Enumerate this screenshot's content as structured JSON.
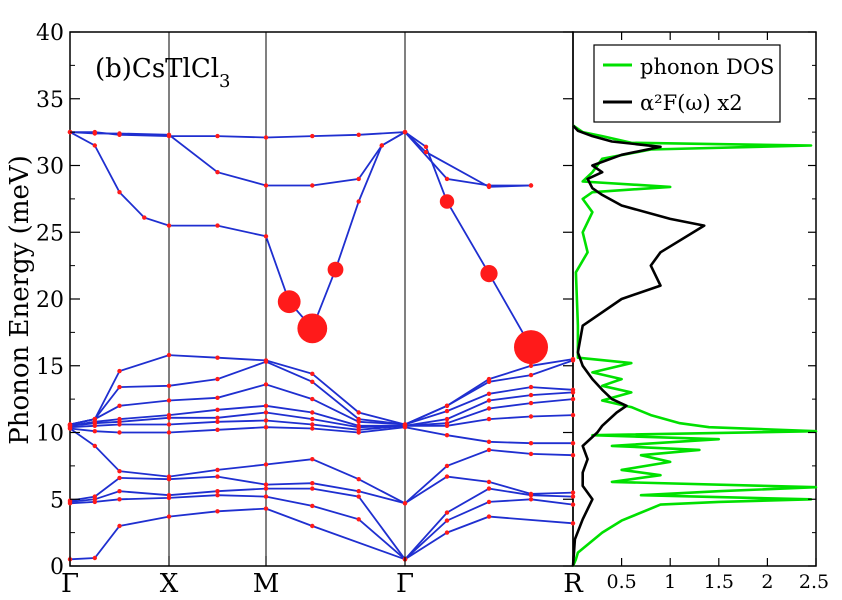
{
  "chart_data": [
    {
      "type": "line",
      "title": "(b)CsTlCl",
      "title_subscript": "3",
      "ylabel": "Phonon Energy (meV)",
      "xlabel": "",
      "ylim": [
        0,
        40
      ],
      "y_ticks": [
        "0",
        "5",
        "10",
        "15",
        "20",
        "25",
        "30",
        "35",
        "40"
      ],
      "x_ticks": [
        "Γ",
        "X",
        "M",
        "Γ",
        "R"
      ],
      "grid": false,
      "vertical_lines_at": [
        "X",
        "M",
        "Γ"
      ],
      "band_color": "#1f2fd0",
      "marker_color": "#ff1a1a",
      "note": "",
      "bands": [
        [
          [
            0,
            0.5
          ],
          [
            0.5,
            0.6
          ],
          [
            1,
            3.0
          ],
          [
            2,
            3.7
          ],
          [
            2.5,
            4.1
          ],
          [
            3,
            4.3
          ],
          [
            4,
            3.0
          ],
          [
            6,
            0.5
          ],
          [
            7,
            2.5
          ],
          [
            8,
            3.7
          ],
          [
            10,
            3.2
          ]
        ],
        [
          [
            0,
            4.7
          ],
          [
            0.5,
            4.8
          ],
          [
            1,
            5.0
          ],
          [
            2,
            5.1
          ],
          [
            2.5,
            5.3
          ],
          [
            3,
            5.2
          ],
          [
            4,
            4.5
          ],
          [
            5,
            3.5
          ],
          [
            6,
            0.5
          ],
          [
            7,
            3.4
          ],
          [
            8,
            4.8
          ],
          [
            9,
            5.0
          ],
          [
            10,
            4.6
          ]
        ],
        [
          [
            0,
            4.8
          ],
          [
            0.5,
            5.0
          ],
          [
            1,
            5.6
          ],
          [
            2,
            5.3
          ],
          [
            2.5,
            5.6
          ],
          [
            3,
            5.8
          ],
          [
            4,
            5.8
          ],
          [
            5,
            5.2
          ],
          [
            6,
            0.5
          ],
          [
            7,
            4.0
          ],
          [
            8,
            5.8
          ],
          [
            9,
            5.3
          ],
          [
            10,
            5.2
          ]
        ],
        [
          [
            0,
            4.9
          ],
          [
            0.5,
            5.2
          ],
          [
            1,
            6.6
          ],
          [
            2,
            6.5
          ],
          [
            2.5,
            6.7
          ],
          [
            3,
            6.1
          ],
          [
            4,
            6.2
          ],
          [
            5,
            5.6
          ],
          [
            6,
            4.7
          ],
          [
            7,
            6.7
          ],
          [
            8,
            6.3
          ],
          [
            9,
            5.4
          ],
          [
            10,
            5.5
          ]
        ],
        [
          [
            0,
            10.3
          ],
          [
            0.5,
            9.0
          ],
          [
            1,
            7.1
          ],
          [
            2,
            6.7
          ],
          [
            2.5,
            7.2
          ],
          [
            3,
            7.6
          ],
          [
            4,
            8.0
          ],
          [
            5,
            6.5
          ],
          [
            6,
            4.7
          ],
          [
            7,
            7.5
          ],
          [
            8,
            8.7
          ],
          [
            9,
            8.4
          ],
          [
            10,
            8.3
          ]
        ],
        [
          [
            0,
            10.3
          ],
          [
            0.5,
            10.1
          ],
          [
            1,
            10.0
          ],
          [
            2,
            10.0
          ],
          [
            2.5,
            10.2
          ],
          [
            3,
            10.4
          ],
          [
            4,
            10.3
          ],
          [
            5,
            10.0
          ],
          [
            6,
            10.4
          ],
          [
            7,
            9.8
          ],
          [
            8,
            9.3
          ],
          [
            9,
            9.2
          ],
          [
            10,
            9.2
          ]
        ],
        [
          [
            0,
            10.4
          ],
          [
            0.5,
            10.5
          ],
          [
            1,
            10.6
          ],
          [
            2,
            10.6
          ],
          [
            2.5,
            10.8
          ],
          [
            3,
            10.9
          ],
          [
            4,
            10.6
          ],
          [
            5,
            10.2
          ],
          [
            6,
            10.5
          ],
          [
            7,
            10.5
          ],
          [
            8,
            11.0
          ],
          [
            9,
            11.2
          ],
          [
            10,
            11.3
          ]
        ],
        [
          [
            0,
            10.5
          ],
          [
            0.5,
            10.7
          ],
          [
            1,
            10.8
          ],
          [
            2,
            11.1
          ],
          [
            2.5,
            11.1
          ],
          [
            3,
            11.5
          ],
          [
            4,
            11.0
          ],
          [
            5,
            10.4
          ],
          [
            6,
            10.5
          ],
          [
            7,
            10.7
          ],
          [
            8,
            11.8
          ],
          [
            9,
            12.2
          ],
          [
            10,
            12.5
          ]
        ],
        [
          [
            0,
            10.5
          ],
          [
            0.5,
            10.8
          ],
          [
            1,
            11.0
          ],
          [
            2,
            11.3
          ],
          [
            2.5,
            11.7
          ],
          [
            3,
            12.0
          ],
          [
            4,
            11.5
          ],
          [
            5,
            10.5
          ],
          [
            6,
            10.5
          ],
          [
            7,
            11.0
          ],
          [
            8,
            12.4
          ],
          [
            9,
            12.8
          ],
          [
            10,
            13.0
          ]
        ],
        [
          [
            0,
            10.6
          ],
          [
            0.5,
            11.0
          ],
          [
            1,
            12.0
          ],
          [
            2,
            12.4
          ],
          [
            2.5,
            12.6
          ],
          [
            3,
            13.6
          ],
          [
            4,
            12.5
          ],
          [
            5,
            10.8
          ],
          [
            6,
            10.6
          ],
          [
            7,
            11.6
          ],
          [
            8,
            12.9
          ],
          [
            9,
            13.4
          ],
          [
            10,
            13.2
          ]
        ],
        [
          [
            0,
            10.6
          ],
          [
            0.5,
            11.0
          ],
          [
            1,
            13.4
          ],
          [
            2,
            13.5
          ],
          [
            2.5,
            14.0
          ],
          [
            3,
            15.3
          ],
          [
            4,
            13.8
          ],
          [
            5,
            11.0
          ],
          [
            6,
            10.6
          ],
          [
            7,
            12.0
          ],
          [
            8,
            13.8
          ],
          [
            9,
            14.3
          ],
          [
            10,
            15.4
          ]
        ],
        [
          [
            0,
            10.6
          ],
          [
            0.5,
            11.0
          ],
          [
            1,
            14.6
          ],
          [
            2,
            15.8
          ],
          [
            2.5,
            15.6
          ],
          [
            3,
            15.4
          ],
          [
            4,
            14.4
          ],
          [
            5,
            11.5
          ],
          [
            6,
            10.6
          ],
          [
            7,
            12.0
          ],
          [
            8,
            14.0
          ],
          [
            9,
            15.0
          ],
          [
            10,
            15.5
          ]
        ],
        [
          [
            0,
            32.5
          ],
          [
            0.5,
            31.5
          ],
          [
            1,
            28.0
          ],
          [
            1.5,
            26.1
          ],
          [
            2,
            25.5
          ],
          [
            2.5,
            25.5
          ],
          [
            3,
            24.7
          ],
          [
            3.5,
            19.8
          ],
          [
            4,
            17.8
          ],
          [
            4.5,
            22.2
          ],
          [
            5,
            27.3
          ],
          [
            5.5,
            31.5
          ],
          [
            6,
            32.5
          ],
          [
            6.5,
            31.4
          ],
          [
            7,
            27.3
          ],
          [
            8,
            21.9
          ],
          [
            9,
            16.4
          ]
        ],
        [
          [
            0,
            32.5
          ],
          [
            0.5,
            32.4
          ],
          [
            1,
            32.4
          ],
          [
            2,
            32.3
          ],
          [
            2.5,
            29.5
          ],
          [
            3,
            28.5
          ],
          [
            4,
            28.5
          ],
          [
            5,
            29.0
          ],
          [
            5.5,
            31.5
          ],
          [
            6,
            32.5
          ],
          [
            7,
            29.0
          ],
          [
            8,
            28.5
          ],
          [
            9,
            28.5
          ]
        ],
        [
          [
            0,
            32.5
          ],
          [
            0.5,
            32.5
          ],
          [
            1,
            32.3
          ],
          [
            2,
            32.2
          ],
          [
            2.5,
            32.2
          ],
          [
            3,
            32.1
          ],
          [
            4,
            32.2
          ],
          [
            5,
            32.3
          ],
          [
            6,
            32.5
          ],
          [
            6.5,
            31.0
          ],
          [
            8,
            28.4
          ],
          [
            9,
            28.5
          ]
        ]
      ],
      "band_x_note": "",
      "large_markers": [
        {
          "x": 3.5,
          "y": 19.8,
          "weight": 0.6
        },
        {
          "x": 4.0,
          "y": 17.8,
          "weight": 0.85
        },
        {
          "x": 4.5,
          "y": 22.2,
          "weight": 0.35
        },
        {
          "x": 7.0,
          "y": 27.3,
          "weight": 0.3
        },
        {
          "x": 8.0,
          "y": 21.9,
          "weight": 0.4
        },
        {
          "x": 9.0,
          "y": 16.4,
          "weight": 1.0
        }
      ]
    },
    {
      "type": "line",
      "title": "",
      "xlabel": "",
      "x_ticks": [
        "0.5",
        "1",
        "1.5",
        "2",
        "2.5"
      ],
      "xlim": [
        0,
        2.5
      ],
      "ylim": [
        0,
        40
      ],
      "legend_placement": "top-right",
      "series": [
        {
          "name": "phonon DOS",
          "color": "#00e000",
          "points": [
            [
              0,
              0
            ],
            [
              0.03,
              0.5
            ],
            [
              0.05,
              1
            ],
            [
              0.3,
              2.5
            ],
            [
              0.5,
              3.4
            ],
            [
              0.9,
              4.6
            ],
            [
              1.5,
              4.8
            ],
            [
              2.45,
              5.0
            ],
            [
              0.7,
              5.3
            ],
            [
              1.5,
              5.6
            ],
            [
              2.5,
              5.9
            ],
            [
              0.4,
              6.3
            ],
            [
              0.9,
              6.8
            ],
            [
              0.5,
              7.2
            ],
            [
              1.0,
              7.8
            ],
            [
              0.7,
              8.3
            ],
            [
              1.3,
              8.7
            ],
            [
              0.4,
              9.0
            ],
            [
              1.5,
              9.5
            ],
            [
              0.2,
              9.8
            ],
            [
              2.5,
              10.1
            ],
            [
              1.4,
              10.4
            ],
            [
              1.1,
              10.7
            ],
            [
              0.8,
              11.3
            ],
            [
              0.6,
              11.9
            ],
            [
              0.3,
              12.4
            ],
            [
              0.6,
              13.0
            ],
            [
              0.3,
              13.5
            ],
            [
              0.5,
              14.0
            ],
            [
              0.2,
              14.5
            ],
            [
              0.6,
              15.2
            ],
            [
              0.05,
              15.6
            ],
            [
              0.05,
              18.0
            ],
            [
              0.03,
              22.0
            ],
            [
              0.15,
              23.5
            ],
            [
              0.1,
              25.0
            ],
            [
              0.2,
              26.5
            ],
            [
              0.1,
              27.5
            ],
            [
              0.2,
              28.0
            ],
            [
              1.0,
              28.4
            ],
            [
              0.1,
              28.8
            ],
            [
              0.2,
              29.5
            ],
            [
              0.3,
              30.5
            ],
            [
              0.8,
              31.2
            ],
            [
              2.45,
              31.5
            ],
            [
              0.6,
              31.7
            ],
            [
              0.3,
              32.2
            ],
            [
              0.1,
              32.5
            ],
            [
              0,
              33
            ]
          ]
        },
        {
          "name": "α²F(ω) x2",
          "color": "#000000",
          "points": [
            [
              0,
              0
            ],
            [
              0.02,
              2.0
            ],
            [
              0.1,
              3.5
            ],
            [
              0.2,
              5.0
            ],
            [
              0.1,
              6.0
            ],
            [
              0.1,
              7.0
            ],
            [
              0.15,
              8.0
            ],
            [
              0.1,
              9.0
            ],
            [
              0.25,
              10.0
            ],
            [
              0.3,
              10.5
            ],
            [
              0.45,
              11.5
            ],
            [
              0.55,
              12.0
            ],
            [
              0.4,
              12.5
            ],
            [
              0.3,
              13.2
            ],
            [
              0.2,
              14.0
            ],
            [
              0.1,
              15.0
            ],
            [
              0.05,
              16.0
            ],
            [
              0.1,
              18.0
            ],
            [
              0.5,
              20.0
            ],
            [
              0.9,
              21.0
            ],
            [
              0.8,
              22.5
            ],
            [
              0.9,
              23.5
            ],
            [
              1.35,
              25.5
            ],
            [
              1.0,
              26.0
            ],
            [
              0.5,
              27.0
            ],
            [
              0.3,
              27.8
            ],
            [
              0.2,
              28.3
            ],
            [
              0.15,
              29.0
            ],
            [
              0.3,
              29.5
            ],
            [
              0.2,
              30.0
            ],
            [
              0.5,
              30.8
            ],
            [
              0.9,
              31.4
            ],
            [
              0.4,
              31.8
            ],
            [
              0.2,
              32.2
            ],
            [
              0.05,
              32.6
            ],
            [
              0,
              33
            ]
          ]
        }
      ]
    }
  ]
}
